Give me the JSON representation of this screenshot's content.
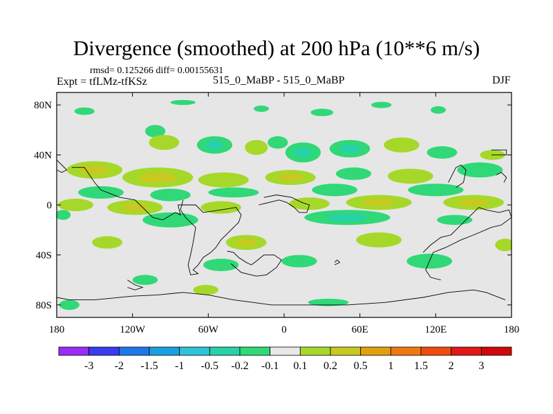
{
  "header": {
    "title": "Divergence (smoothed) at 200 hPa (10**6 m/s)",
    "stats": "rmsd= 0.125266 diff= 0.00155631",
    "experiment": "Expt = tfLMz-tfKSz",
    "comparison": "515_0_MaBP - 515_0_MaBP",
    "season": "DJF"
  },
  "chart_data": {
    "type": "heatmap",
    "title": "Divergence (smoothed) at 200 hPa (10**6 m/s)",
    "projection": "cylindrical-equidistant",
    "xlim": [
      -180,
      180
    ],
    "ylim": [
      -90,
      90
    ],
    "x_ticks": [
      {
        "value": -180,
        "label": "180"
      },
      {
        "value": -120,
        "label": "120W"
      },
      {
        "value": -60,
        "label": "60W"
      },
      {
        "value": 0,
        "label": "0"
      },
      {
        "value": 60,
        "label": "60E"
      },
      {
        "value": 120,
        "label": "120E"
      },
      {
        "value": 180,
        "label": "180"
      }
    ],
    "y_ticks": [
      {
        "value": 80,
        "label": "80N"
      },
      {
        "value": 40,
        "label": "40N"
      },
      {
        "value": 0,
        "label": "0"
      },
      {
        "value": -40,
        "label": "40S"
      },
      {
        "value": -80,
        "label": "80S"
      }
    ],
    "colorbar": {
      "labels": [
        "-3",
        "-2",
        "-1.5",
        "-1",
        "-0.5",
        "-0.2",
        "-0.1",
        "0.1",
        "0.2",
        "0.5",
        "1",
        "1.5",
        "2",
        "3"
      ],
      "colors": [
        "#9a2cf5",
        "#3b3bf0",
        "#1f78e8",
        "#1aa0e0",
        "#2ec4d8",
        "#28d2a8",
        "#30d878",
        "#e8e8e8",
        "#a6d82a",
        "#c8c820",
        "#e0a010",
        "#f07810",
        "#f04c10",
        "#e01818",
        "#d00808"
      ]
    },
    "background_color": "#e6e6e6",
    "anomalies": [
      {
        "lon": -158,
        "lat": 75,
        "rx": 8,
        "ry": 3,
        "level": "neg"
      },
      {
        "lon": -80,
        "lat": 82,
        "rx": 10,
        "ry": 2,
        "level": "neg"
      },
      {
        "lon": -18,
        "lat": 77,
        "rx": 6,
        "ry": 2.5,
        "level": "neg"
      },
      {
        "lon": 30,
        "lat": 74,
        "rx": 9,
        "ry": 3,
        "level": "neg"
      },
      {
        "lon": 77,
        "lat": 80,
        "rx": 8,
        "ry": 2.5,
        "level": "neg"
      },
      {
        "lon": 122,
        "lat": 76,
        "rx": 6,
        "ry": 3,
        "level": "neg"
      },
      {
        "lon": -102,
        "lat": 59,
        "rx": 8,
        "ry": 5,
        "level": "neg"
      },
      {
        "lon": -95,
        "lat": 50,
        "rx": 12,
        "ry": 6,
        "level": "pos"
      },
      {
        "lon": -55,
        "lat": 48,
        "rx": 14,
        "ry": 7,
        "level": "neg"
      },
      {
        "lon": -55,
        "lat": 48,
        "rx": 7,
        "ry": 4,
        "level": "neg2"
      },
      {
        "lon": -22,
        "lat": 46,
        "rx": 9,
        "ry": 6,
        "level": "pos"
      },
      {
        "lon": -5,
        "lat": 50,
        "rx": 8,
        "ry": 5,
        "level": "neg"
      },
      {
        "lon": 15,
        "lat": 42,
        "rx": 14,
        "ry": 8,
        "level": "neg"
      },
      {
        "lon": 15,
        "lat": 42,
        "rx": 7,
        "ry": 4,
        "level": "neg2"
      },
      {
        "lon": 52,
        "lat": 45,
        "rx": 16,
        "ry": 7,
        "level": "neg"
      },
      {
        "lon": 52,
        "lat": 45,
        "rx": 8,
        "ry": 3.5,
        "level": "neg2"
      },
      {
        "lon": 93,
        "lat": 48,
        "rx": 14,
        "ry": 6,
        "level": "pos"
      },
      {
        "lon": 125,
        "lat": 42,
        "rx": 12,
        "ry": 5,
        "level": "neg"
      },
      {
        "lon": 165,
        "lat": 40,
        "rx": 10,
        "ry": 4,
        "level": "pos"
      },
      {
        "lon": -150,
        "lat": 28,
        "rx": 22,
        "ry": 7,
        "level": "pos"
      },
      {
        "lon": -150,
        "lat": 28,
        "rx": 12,
        "ry": 3.5,
        "level": "pos2"
      },
      {
        "lon": -100,
        "lat": 22,
        "rx": 28,
        "ry": 8,
        "level": "pos"
      },
      {
        "lon": -100,
        "lat": 22,
        "rx": 15,
        "ry": 4,
        "level": "pos2"
      },
      {
        "lon": -48,
        "lat": 20,
        "rx": 20,
        "ry": 6,
        "level": "pos"
      },
      {
        "lon": 5,
        "lat": 22,
        "rx": 20,
        "ry": 6,
        "level": "pos"
      },
      {
        "lon": 5,
        "lat": 22,
        "rx": 10,
        "ry": 3,
        "level": "pos2"
      },
      {
        "lon": 55,
        "lat": 25,
        "rx": 14,
        "ry": 5,
        "level": "neg"
      },
      {
        "lon": 100,
        "lat": 23,
        "rx": 18,
        "ry": 6,
        "level": "pos"
      },
      {
        "lon": 155,
        "lat": 28,
        "rx": 18,
        "ry": 6,
        "level": "neg"
      },
      {
        "lon": -145,
        "lat": 10,
        "rx": 18,
        "ry": 5,
        "level": "neg"
      },
      {
        "lon": -90,
        "lat": 8,
        "rx": 16,
        "ry": 5,
        "level": "neg"
      },
      {
        "lon": -40,
        "lat": 10,
        "rx": 20,
        "ry": 4,
        "level": "neg"
      },
      {
        "lon": 40,
        "lat": 12,
        "rx": 18,
        "ry": 5,
        "level": "neg"
      },
      {
        "lon": 120,
        "lat": 12,
        "rx": 22,
        "ry": 5,
        "level": "neg"
      },
      {
        "lon": -165,
        "lat": 0,
        "rx": 14,
        "ry": 5,
        "level": "pos"
      },
      {
        "lon": -118,
        "lat": -2,
        "rx": 22,
        "ry": 6,
        "level": "pos"
      },
      {
        "lon": -118,
        "lat": -2,
        "rx": 10,
        "ry": 3,
        "level": "pos2"
      },
      {
        "lon": -50,
        "lat": -2,
        "rx": 16,
        "ry": 5,
        "level": "pos"
      },
      {
        "lon": 20,
        "lat": 1,
        "rx": 16,
        "ry": 5,
        "level": "pos"
      },
      {
        "lon": 75,
        "lat": 2,
        "rx": 26,
        "ry": 6,
        "level": "pos"
      },
      {
        "lon": 75,
        "lat": 2,
        "rx": 13,
        "ry": 3,
        "level": "pos2"
      },
      {
        "lon": 150,
        "lat": 2,
        "rx": 24,
        "ry": 6,
        "level": "pos"
      },
      {
        "lon": 150,
        "lat": 2,
        "rx": 12,
        "ry": 3,
        "level": "pos2"
      },
      {
        "lon": -175,
        "lat": -8,
        "rx": 6,
        "ry": 4,
        "level": "neg"
      },
      {
        "lon": -90,
        "lat": -12,
        "rx": 22,
        "ry": 6,
        "level": "neg"
      },
      {
        "lon": 50,
        "lat": -10,
        "rx": 34,
        "ry": 6,
        "level": "neg"
      },
      {
        "lon": 50,
        "lat": -10,
        "rx": 16,
        "ry": 3,
        "level": "neg2"
      },
      {
        "lon": 135,
        "lat": -12,
        "rx": 14,
        "ry": 4,
        "level": "neg"
      },
      {
        "lon": -140,
        "lat": -30,
        "rx": 12,
        "ry": 5,
        "level": "pos"
      },
      {
        "lon": -30,
        "lat": -30,
        "rx": 16,
        "ry": 6,
        "level": "pos"
      },
      {
        "lon": -30,
        "lat": -30,
        "rx": 8,
        "ry": 3,
        "level": "pos2"
      },
      {
        "lon": 75,
        "lat": -28,
        "rx": 18,
        "ry": 6,
        "level": "pos"
      },
      {
        "lon": 175,
        "lat": -32,
        "rx": 8,
        "ry": 5,
        "level": "pos"
      },
      {
        "lon": -50,
        "lat": -48,
        "rx": 14,
        "ry": 5,
        "level": "neg"
      },
      {
        "lon": 12,
        "lat": -45,
        "rx": 14,
        "ry": 5,
        "level": "neg"
      },
      {
        "lon": 115,
        "lat": -45,
        "rx": 18,
        "ry": 6,
        "level": "neg"
      },
      {
        "lon": -110,
        "lat": -60,
        "rx": 10,
        "ry": 4,
        "level": "neg"
      },
      {
        "lon": -62,
        "lat": -68,
        "rx": 10,
        "ry": 4,
        "level": "pos"
      },
      {
        "lon": -170,
        "lat": -80,
        "rx": 8,
        "ry": 4,
        "level": "neg"
      },
      {
        "lon": 35,
        "lat": -78,
        "rx": 16,
        "ry": 3,
        "level": "neg"
      }
    ],
    "coastlines": [
      [
        [
          -168,
          30
        ],
        [
          -158,
          30
        ],
        [
          -150,
          18
        ],
        [
          -145,
          12
        ],
        [
          -130,
          6
        ],
        [
          -118,
          4
        ],
        [
          -112,
          -2
        ],
        [
          -104,
          -10
        ],
        [
          -96,
          -12
        ],
        [
          -86,
          -6
        ],
        [
          -82,
          -8
        ],
        [
          -84,
          0
        ],
        [
          -70,
          0
        ],
        [
          -64,
          -6
        ],
        [
          -50,
          -4
        ],
        [
          -38,
          -2
        ],
        [
          -34,
          -8
        ],
        [
          -36,
          -14
        ],
        [
          -40,
          -18
        ],
        [
          -44,
          -22
        ],
        [
          -50,
          -28
        ],
        [
          -54,
          -34
        ],
        [
          -58,
          -38
        ],
        [
          -64,
          -42
        ],
        [
          -68,
          -48
        ],
        [
          -72,
          -52
        ],
        [
          -68,
          -55
        ],
        [
          -74,
          -56
        ],
        [
          -76,
          -48
        ],
        [
          -74,
          -40
        ],
        [
          -72,
          -30
        ],
        [
          -70,
          -18
        ],
        [
          -78,
          -10
        ],
        [
          -82,
          -4
        ],
        [
          -80,
          4
        ]
      ],
      [
        [
          -180,
          -74
        ],
        [
          -170,
          -76
        ],
        [
          -150,
          -76
        ],
        [
          -120,
          -73
        ],
        [
          -100,
          -72
        ],
        [
          -80,
          -70
        ],
        [
          -60,
          -72
        ],
        [
          -40,
          -76
        ],
        [
          -10,
          -80
        ],
        [
          20,
          -80
        ],
        [
          50,
          -80
        ],
        [
          80,
          -78
        ],
        [
          110,
          -74
        ],
        [
          130,
          -70
        ],
        [
          150,
          -68
        ],
        [
          160,
          -70
        ],
        [
          175,
          -76
        ]
      ],
      [
        [
          -45,
          -37
        ],
        [
          -40,
          -38
        ],
        [
          -36,
          -42
        ],
        [
          -30,
          -46
        ],
        [
          -26,
          -48
        ],
        [
          -22,
          -45
        ],
        [
          -16,
          -40
        ],
        [
          -8,
          -40
        ],
        [
          -2,
          -44
        ],
        [
          -6,
          -50
        ],
        [
          -14,
          -56
        ],
        [
          -22,
          -57
        ],
        [
          -34,
          -54
        ],
        [
          -42,
          -47
        ]
      ],
      [
        [
          -20,
          0
        ],
        [
          -12,
          2
        ],
        [
          -4,
          4
        ],
        [
          2,
          2
        ],
        [
          8,
          -2
        ],
        [
          12,
          -6
        ],
        [
          18,
          -6
        ],
        [
          20,
          0
        ],
        [
          14,
          2
        ],
        [
          6,
          6
        ],
        [
          -6,
          8
        ],
        [
          -16,
          6
        ]
      ],
      [
        [
          110,
          -38
        ],
        [
          116,
          -32
        ],
        [
          124,
          -26
        ],
        [
          132,
          -24
        ],
        [
          138,
          -18
        ],
        [
          144,
          -12
        ],
        [
          150,
          -6
        ],
        [
          154,
          -2
        ],
        [
          160,
          -4
        ],
        [
          170,
          -6
        ],
        [
          178,
          -4
        ],
        [
          180,
          -10
        ],
        [
          172,
          -16
        ],
        [
          164,
          -18
        ],
        [
          150,
          -24
        ],
        [
          140,
          -28
        ],
        [
          128,
          -34
        ],
        [
          118,
          -38
        ],
        [
          112,
          -52
        ],
        [
          116,
          -58
        ],
        [
          124,
          -60
        ]
      ],
      [
        [
          130,
          18
        ],
        [
          136,
          30
        ],
        [
          140,
          32
        ],
        [
          144,
          28
        ],
        [
          142,
          18
        ],
        [
          136,
          14
        ]
      ],
      [
        [
          168,
          24
        ],
        [
          172,
          26
        ],
        [
          176,
          22
        ],
        [
          174,
          18
        ]
      ],
      [
        [
          164,
          44
        ],
        [
          176,
          44
        ],
        [
          176,
          40
        ],
        [
          164,
          40
        ]
      ],
      [
        [
          -180,
          36
        ],
        [
          -176,
          32
        ],
        [
          -172,
          28
        ],
        [
          -176,
          26
        ],
        [
          -180,
          28
        ]
      ],
      [
        [
          -124,
          -60
        ],
        [
          -118,
          -64
        ],
        [
          -112,
          -66
        ],
        [
          -118,
          -68
        ],
        [
          -124,
          -66
        ]
      ],
      [
        [
          40,
          -48
        ],
        [
          44,
          -46
        ],
        [
          42,
          -44
        ],
        [
          40,
          -46
        ]
      ]
    ]
  }
}
